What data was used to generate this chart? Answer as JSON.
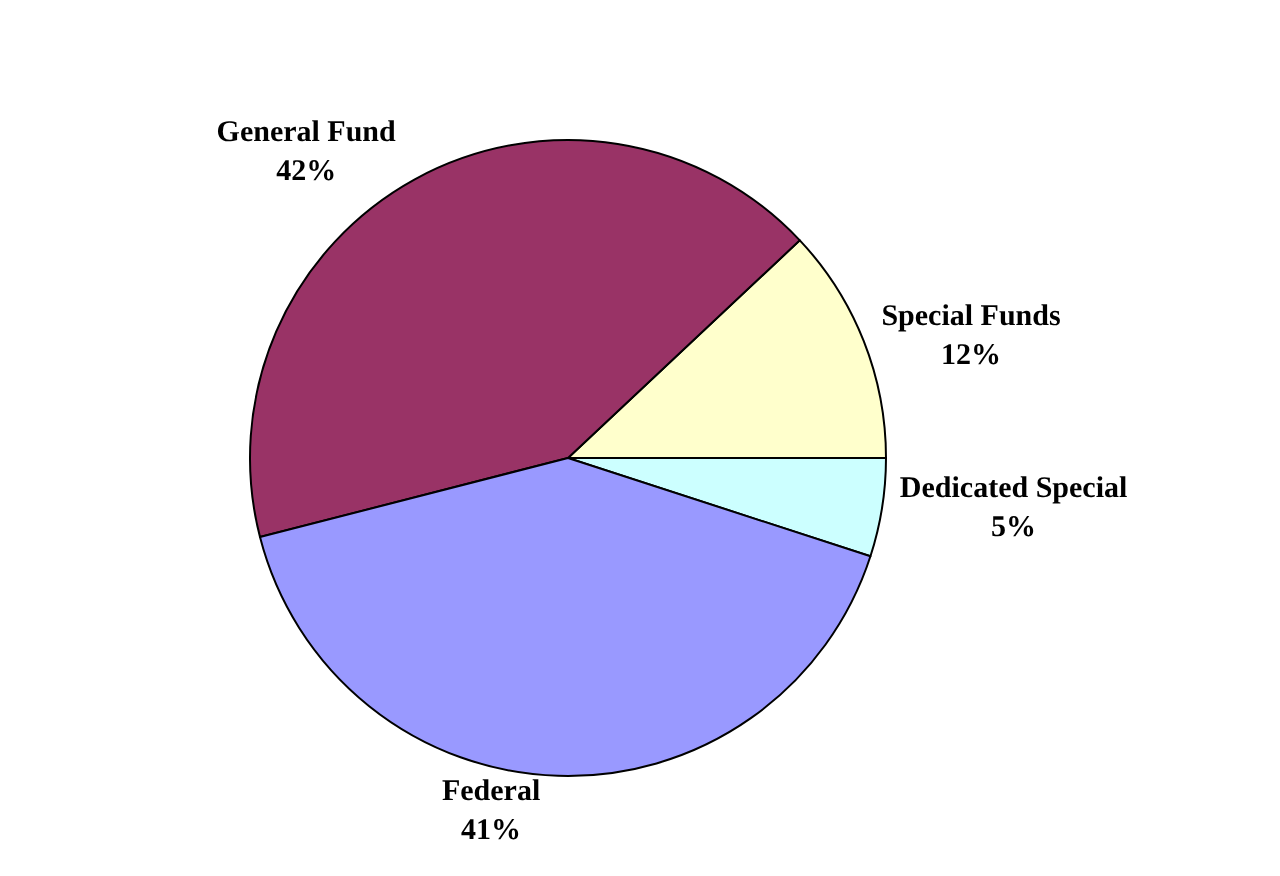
{
  "chart_data": {
    "type": "pie",
    "categories": [
      "Dedicated Special",
      "Special Funds",
      "General Fund",
      "Federal"
    ],
    "values": [
      5,
      12,
      42,
      41
    ],
    "colors": [
      "#ccffff",
      "#ffffcc",
      "#993366",
      "#9999ff"
    ],
    "value_labels": [
      "5%",
      "12%",
      "42%",
      "41%"
    ],
    "legend": false
  }
}
